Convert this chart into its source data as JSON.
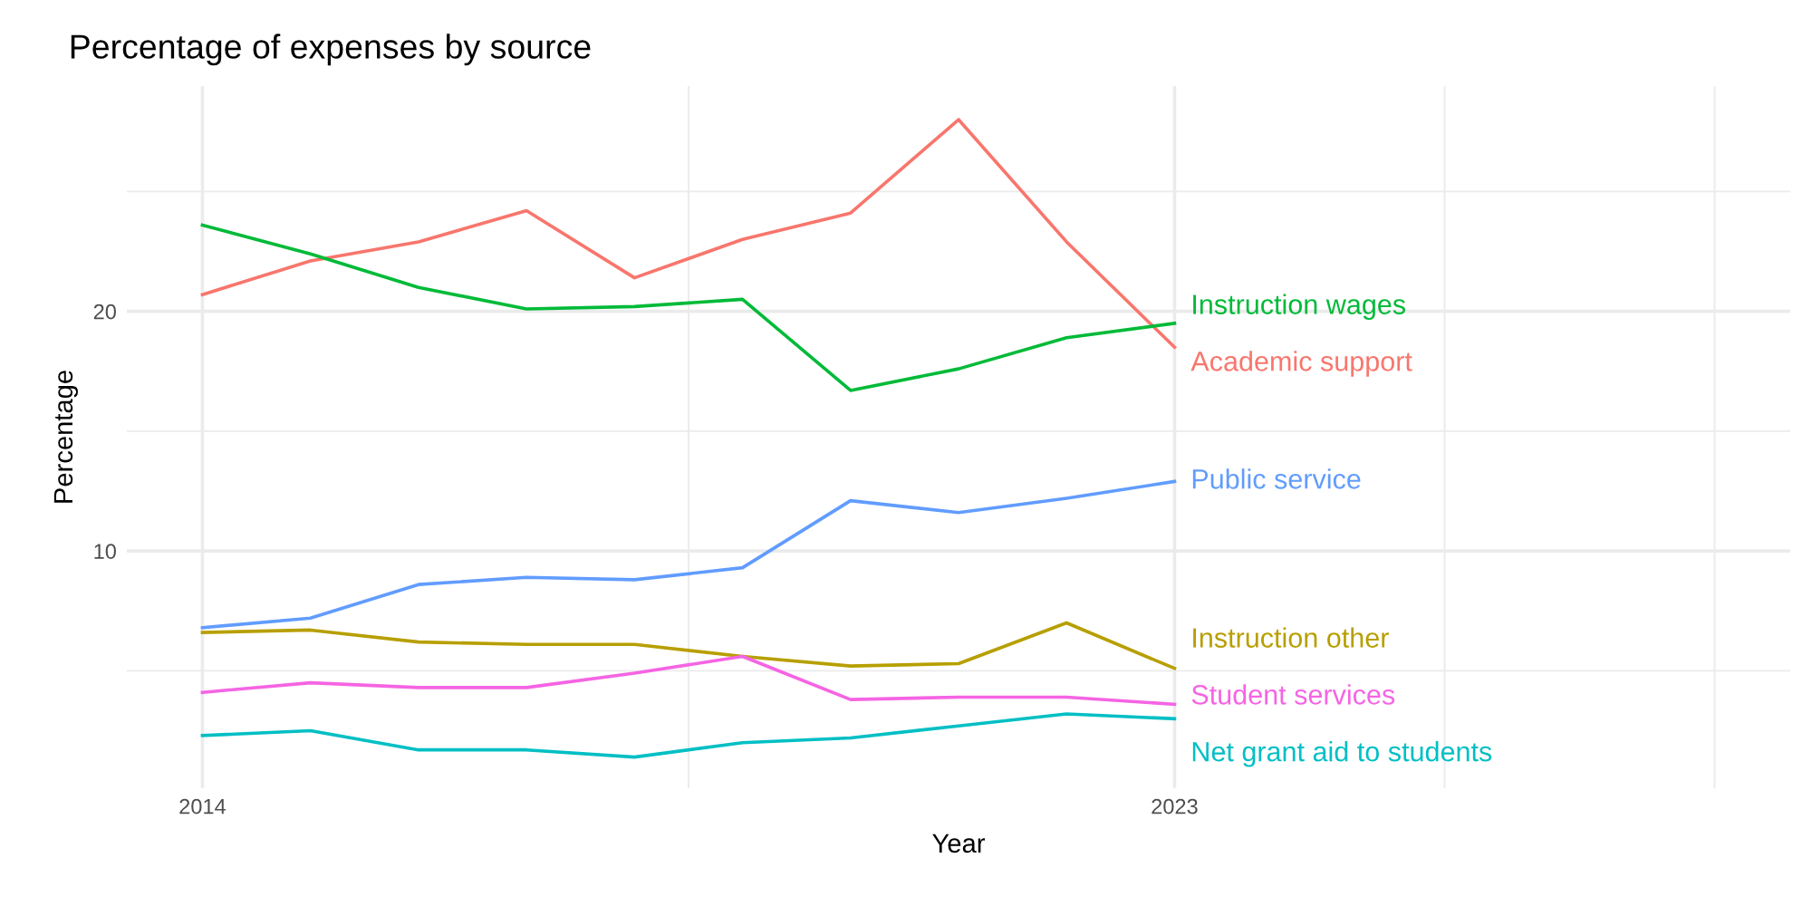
{
  "chart_data": {
    "type": "line",
    "title": "Percentage of expenses by source",
    "xlabel": "Year",
    "ylabel": "Percentage",
    "x": [
      2014,
      2015,
      2016,
      2017,
      2018,
      2019,
      2020,
      2021,
      2022,
      2023
    ],
    "series": [
      {
        "name": "Academic support",
        "color": "#f8766d",
        "values": [
          20.7,
          22.1,
          22.9,
          24.2,
          21.4,
          23.0,
          24.1,
          28.0,
          22.9,
          18.5
        ]
      },
      {
        "name": "Instruction other",
        "color": "#b79f00",
        "values": [
          6.6,
          6.7,
          6.2,
          6.1,
          6.1,
          5.6,
          5.2,
          5.3,
          7.0,
          5.1
        ]
      },
      {
        "name": "Instruction wages",
        "color": "#00ba38",
        "values": [
          23.6,
          22.4,
          21.0,
          20.1,
          20.2,
          20.5,
          16.7,
          17.6,
          18.9,
          19.5
        ]
      },
      {
        "name": "Net grant aid to students",
        "color": "#00bfc4",
        "values": [
          2.3,
          2.5,
          1.7,
          1.7,
          1.4,
          2.0,
          2.2,
          2.7,
          3.2,
          3.0
        ]
      },
      {
        "name": "Public service",
        "color": "#619cff",
        "values": [
          6.8,
          7.2,
          8.6,
          8.9,
          8.8,
          9.3,
          12.1,
          11.6,
          12.2,
          12.9
        ]
      },
      {
        "name": "Student services",
        "color": "#f564e3",
        "values": [
          4.1,
          4.5,
          4.3,
          4.3,
          4.9,
          5.6,
          3.8,
          3.9,
          3.9,
          3.6
        ]
      }
    ],
    "xlim": [
      2013.3,
      2028.7
    ],
    "xticks": [
      2014,
      {
        "value": 2018.5,
        "label": null
      },
      2023,
      {
        "value": 2025.5,
        "label": null
      },
      {
        "value": 2028,
        "label": null
      }
    ],
    "ylim": [
      0.1,
      29.4
    ],
    "yticks": [
      {
        "value": 5,
        "label": null
      },
      10,
      {
        "value": 15,
        "label": null
      },
      20,
      {
        "value": 25,
        "label": null
      }
    ],
    "grid": true,
    "legend": false,
    "marker": "none",
    "line_style": "solid"
  }
}
